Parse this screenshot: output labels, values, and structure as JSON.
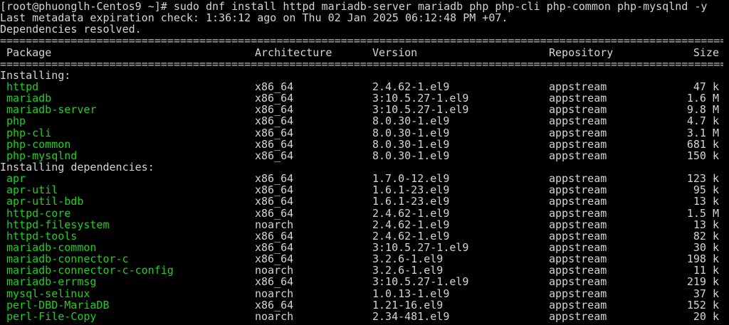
{
  "terminal": {
    "prompt_line": "[root@phuonglh-Centos9 ~]# sudo dnf install httpd mariadb-server mariadb php php-cli php-common php-mysqlnd -y",
    "metadata_line": "Last metadata expiration check: 1:36:12 ago on Thu 02 Jan 2025 06:12:48 PM +07.",
    "resolved_line": "Dependencies resolved.",
    "separator": "================================================================================================================================",
    "headers": {
      "package": " Package",
      "arch": "Architecture",
      "version": "Version",
      "repo": "Repository",
      "size": "Size"
    },
    "accent_color": "#1ed21e",
    "sections": [
      {
        "title": "Installing:",
        "rows": [
          [
            "httpd",
            "x86_64",
            "2.4.62-1.el9",
            "appstream",
            "47 k"
          ],
          [
            "mariadb",
            "x86_64",
            "3:10.5.27-1.el9",
            "appstream",
            "1.6 M"
          ],
          [
            "mariadb-server",
            "x86_64",
            "3:10.5.27-1.el9",
            "appstream",
            "9.8 M"
          ],
          [
            "php",
            "x86_64",
            "8.0.30-1.el9",
            "appstream",
            "4.7 k"
          ],
          [
            "php-cli",
            "x86_64",
            "8.0.30-1.el9",
            "appstream",
            "3.1 M"
          ],
          [
            "php-common",
            "x86_64",
            "8.0.30-1.el9",
            "appstream",
            "681 k"
          ],
          [
            "php-mysqlnd",
            "x86_64",
            "8.0.30-1.el9",
            "appstream",
            "150 k"
          ]
        ]
      },
      {
        "title": "Installing dependencies:",
        "rows": [
          [
            "apr",
            "x86_64",
            "1.7.0-12.el9",
            "appstream",
            "123 k"
          ],
          [
            "apr-util",
            "x86_64",
            "1.6.1-23.el9",
            "appstream",
            "95 k"
          ],
          [
            "apr-util-bdb",
            "x86_64",
            "1.6.1-23.el9",
            "appstream",
            "13 k"
          ],
          [
            "httpd-core",
            "x86_64",
            "2.4.62-1.el9",
            "appstream",
            "1.5 M"
          ],
          [
            "httpd-filesystem",
            "noarch",
            "2.4.62-1.el9",
            "appstream",
            "13 k"
          ],
          [
            "httpd-tools",
            "x86_64",
            "2.4.62-1.el9",
            "appstream",
            "82 k"
          ],
          [
            "mariadb-common",
            "x86_64",
            "3:10.5.27-1.el9",
            "appstream",
            "30 k"
          ],
          [
            "mariadb-connector-c",
            "x86_64",
            "3.2.6-1.el9",
            "appstream",
            "198 k"
          ],
          [
            "mariadb-connector-c-config",
            "noarch",
            "3.2.6-1.el9",
            "appstream",
            "11 k"
          ],
          [
            "mariadb-errmsg",
            "x86_64",
            "3:10.5.27-1.el9",
            "appstream",
            "219 k"
          ],
          [
            "mysql-selinux",
            "noarch",
            "1.0.13-1.el9",
            "appstream",
            "37 k"
          ],
          [
            "perl-DBD-MariaDB",
            "x86_64",
            "1.21-16.el9",
            "appstream",
            "152 k"
          ],
          [
            "perl-File-Copy",
            "noarch",
            "2.34-481.el9",
            "appstream",
            "20 k"
          ]
        ]
      }
    ]
  }
}
